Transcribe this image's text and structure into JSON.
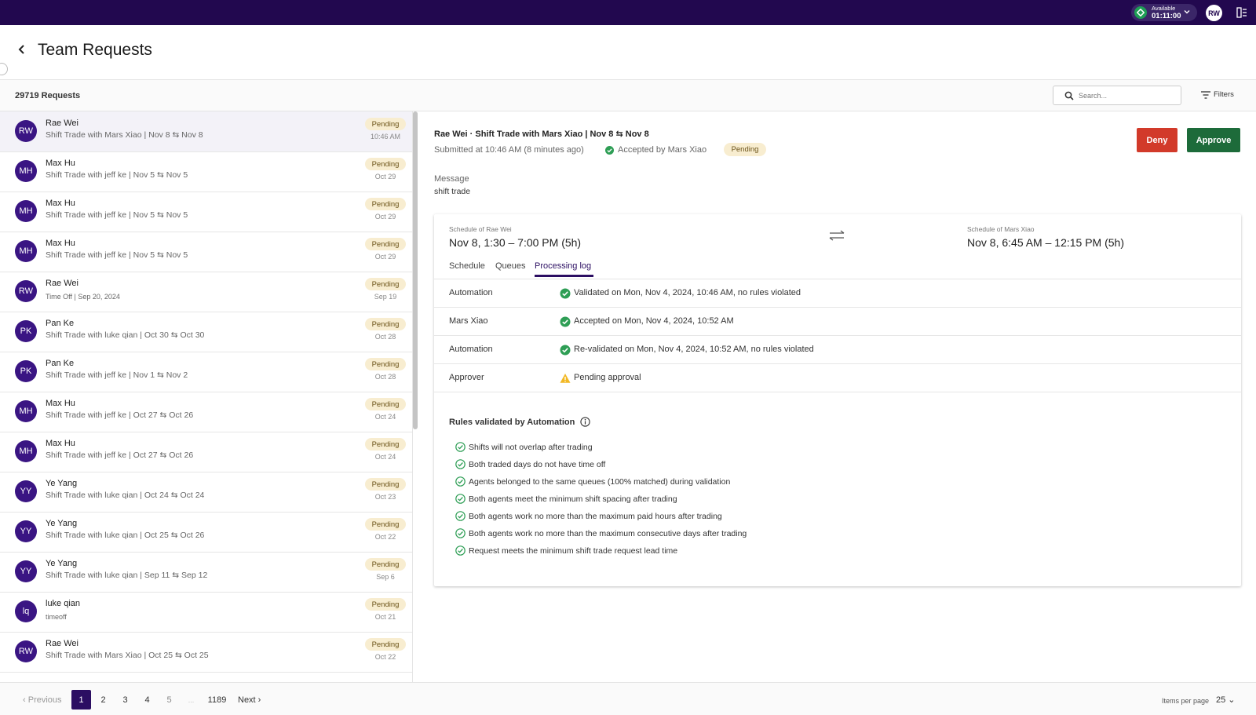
{
  "topbar": {
    "status_label": "Available",
    "status_timer": "01:11:00",
    "user_initials": "RW"
  },
  "header": {
    "title": "Team Requests"
  },
  "subheader": {
    "request_count": "29719 Requests",
    "search_placeholder": "Search...",
    "filters_label": "Filters"
  },
  "requests": [
    {
      "initials": "RW",
      "name": "Rae Wei",
      "desc": "Shift Trade with Mars Xiao | Nov 8 ⇆ Nov 8",
      "status": "Pending",
      "date": "10:46 AM",
      "selected": true
    },
    {
      "initials": "MH",
      "name": "Max Hu",
      "desc": "Shift Trade with jeff ke | Nov 5 ⇆ Nov 5",
      "status": "Pending",
      "date": "Oct 29"
    },
    {
      "initials": "MH",
      "name": "Max Hu",
      "desc": "Shift Trade with jeff ke | Nov 5 ⇆ Nov 5",
      "status": "Pending",
      "date": "Oct 29"
    },
    {
      "initials": "MH",
      "name": "Max Hu",
      "desc": "Shift Trade with jeff ke | Nov 5 ⇆ Nov 5",
      "status": "Pending",
      "date": "Oct 29"
    },
    {
      "initials": "RW",
      "name": "Rae Wei",
      "desc": "Time Off | Sep 20, 2024",
      "status": "Pending",
      "date": "Sep 19",
      "small": true
    },
    {
      "initials": "PK",
      "name": "Pan Ke",
      "desc": "Shift Trade with luke qian | Oct 30 ⇆ Oct 30",
      "status": "Pending",
      "date": "Oct 28"
    },
    {
      "initials": "PK",
      "name": "Pan Ke",
      "desc": "Shift Trade with jeff ke | Nov 1 ⇆ Nov 2",
      "status": "Pending",
      "date": "Oct 28"
    },
    {
      "initials": "MH",
      "name": "Max Hu",
      "desc": "Shift Trade with jeff ke | Oct 27 ⇆ Oct 26",
      "status": "Pending",
      "date": "Oct 24"
    },
    {
      "initials": "MH",
      "name": "Max Hu",
      "desc": "Shift Trade with jeff ke | Oct 27 ⇆ Oct 26",
      "status": "Pending",
      "date": "Oct 24"
    },
    {
      "initials": "YY",
      "name": "Ye Yang",
      "desc": "Shift Trade with luke qian | Oct 24 ⇆ Oct 24",
      "status": "Pending",
      "date": "Oct 23"
    },
    {
      "initials": "YY",
      "name": "Ye Yang",
      "desc": "Shift Trade with luke qian | Oct 25 ⇆ Oct 26",
      "status": "Pending",
      "date": "Oct 22"
    },
    {
      "initials": "YY",
      "name": "Ye Yang",
      "desc": "Shift Trade with luke qian | Sep 11 ⇆ Sep 12",
      "status": "Pending",
      "date": "Sep 6"
    },
    {
      "initials": "lq",
      "name": "luke qian",
      "desc": "timeoff",
      "status": "Pending",
      "date": "Oct 21",
      "small": true
    },
    {
      "initials": "RW",
      "name": "Rae Wei",
      "desc": "Shift Trade with Mars Xiao | Oct 25 ⇆ Oct 25",
      "status": "Pending",
      "date": "Oct 22"
    }
  ],
  "pagination": {
    "previous": "Previous",
    "pages": [
      "1",
      "2",
      "3",
      "4",
      "5",
      "...",
      "1189"
    ],
    "current": "1",
    "next": "Next",
    "per_page_label": "Items per page",
    "per_page_value": "25"
  },
  "detail": {
    "title": "Rae Wei · Shift Trade with Mars Xiao | Nov 8 ⇆ Nov 8",
    "submitted": "Submitted at 10:46 AM (8 minutes ago)",
    "accepted": "Accepted by Mars Xiao",
    "status": "Pending",
    "deny_label": "Deny",
    "approve_label": "Approve",
    "message_label": "Message",
    "message_text": "shift trade",
    "schedule_left_label": "Schedule of Rae Wei",
    "schedule_left_value": "Nov 8, 1:30 – 7:00 PM (5h)",
    "schedule_right_label": "Schedule of Mars Xiao",
    "schedule_right_value": "Nov 8, 6:45 AM – 12:15 PM (5h)",
    "tabs": [
      "Schedule",
      "Queues",
      "Processing log"
    ],
    "active_tab": "Processing log",
    "log": [
      {
        "label": "Automation",
        "text": "Validated on Mon, Nov 4, 2024, 10:46 AM, no rules violated",
        "icon": "check-circle-icon"
      },
      {
        "label": "Mars Xiao",
        "text": "Accepted on Mon, Nov 4, 2024, 10:52 AM",
        "icon": "check-circle-icon"
      },
      {
        "label": "Automation",
        "text": "Re-validated on Mon, Nov 4, 2024, 10:52 AM, no rules violated",
        "icon": "check-circle-icon"
      },
      {
        "label": "Approver",
        "text": "Pending approval",
        "icon": "warning-icon"
      }
    ],
    "rules_title": "Rules validated by Automation",
    "rules": [
      "Shifts will not overlap after trading",
      "Both traded days do not have time off",
      "Agents belonged to the same queues (100% matched) during validation",
      "Both agents meet the minimum shift spacing after trading",
      "Both agents work no more than the maximum paid hours after trading",
      "Both agents work no more than the maximum consecutive days after trading",
      "Request meets the minimum shift trade request lead time"
    ]
  },
  "colors": {
    "topbar": "#22084f",
    "accent": "#2b0e62",
    "avatar": "#3a1583",
    "deny": "#d23a2a",
    "approve": "#1d6b3a",
    "pending_badge": "#f8edd0",
    "success": "#2e9e55",
    "warning": "#f2b824"
  }
}
